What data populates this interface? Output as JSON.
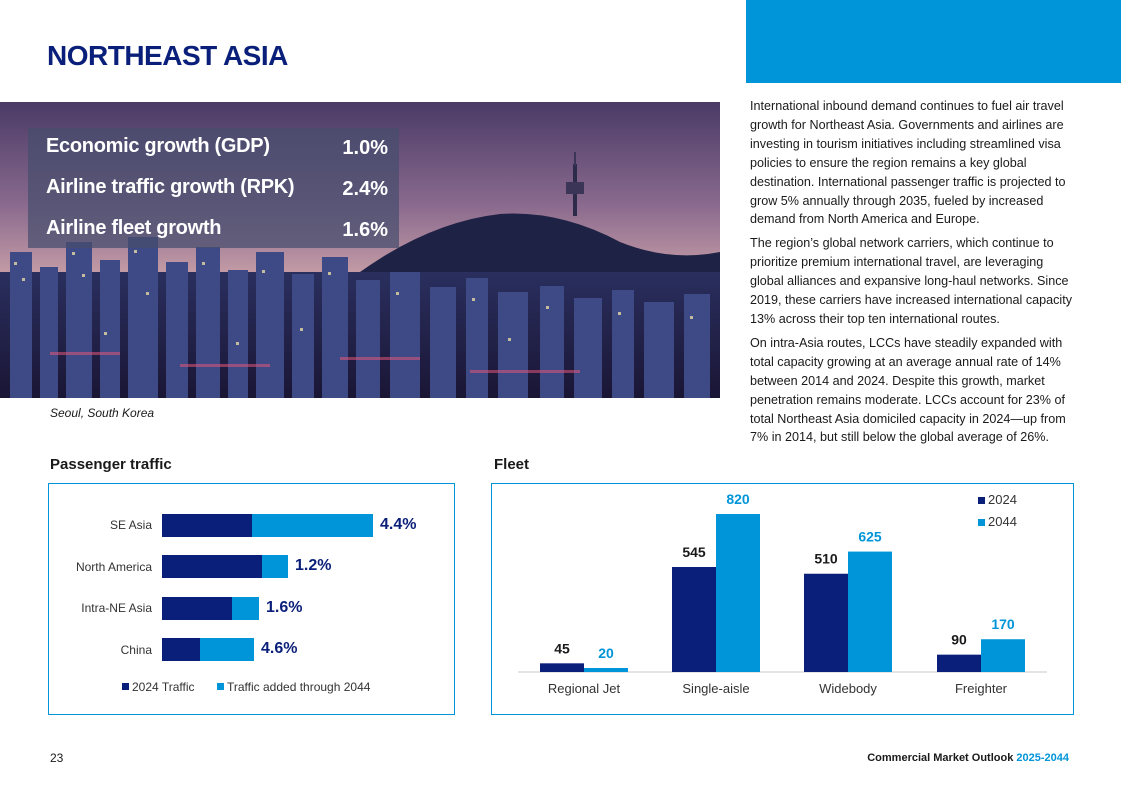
{
  "page": {
    "title": "NORTHEAST ASIA",
    "page_number": "23",
    "footer_brand": "Commercial Market Outlook",
    "footer_years": "2025-2044"
  },
  "stats": [
    {
      "label": "Economic growth (GDP)",
      "value": "1.0%"
    },
    {
      "label": "Airline traffic growth (RPK)",
      "value": "2.4%"
    },
    {
      "label": "Airline fleet growth",
      "value": "1.6%"
    }
  ],
  "photo": {
    "caption": "Seoul, South Korea"
  },
  "body": [
    "International inbound demand continues to fuel air travel growth for Northeast Asia. Governments and airlines are investing in tourism initiatives including streamlined visa policies to ensure the region remains a key global destination. International passenger traffic is projected to grow 5% annually through 2035, fueled by increased demand from North America and Europe.",
    "The region’s global network carriers, which continue to prioritize premium international travel, are leveraging global alliances and expansive long-haul networks. Since 2019, these carriers have increased international capacity 13% across their top ten international routes.",
    "On intra-Asia routes, LCCs have steadily expanded with total capacity growing at an average annual rate of 14% between 2014 and 2024. Despite this growth, market penetration remains moderate. LCCs account for 23% of total Northeast Asia domiciled capacity in 2024—up from 7% in 2014, but still below the global average of 26%."
  ],
  "colors": {
    "dark": "#0a1f7a",
    "light": "#0095d9"
  },
  "chart_data": [
    {
      "type": "bar",
      "orientation": "horizontal",
      "stacked": true,
      "title": "Passenger traffic",
      "categories": [
        "SE Asia",
        "North America",
        "Intra-NE Asia",
        "China"
      ],
      "series": [
        {
          "name": "2024 Traffic",
          "values": [
            90,
            100,
            70,
            38
          ]
        },
        {
          "name": "Traffic added through 2044",
          "values": [
            121,
            26,
            27,
            54
          ]
        }
      ],
      "labels": [
        "4.4%",
        "1.2%",
        "1.6%",
        "4.6%"
      ],
      "legend_position": "bottom"
    },
    {
      "type": "bar",
      "title": "Fleet",
      "categories": [
        "Regional Jet",
        "Single-aisle",
        "Widebody",
        "Freighter"
      ],
      "series": [
        {
          "name": "2024",
          "values": [
            45,
            545,
            510,
            90
          ]
        },
        {
          "name": "2044",
          "values": [
            20,
            820,
            625,
            170
          ]
        }
      ],
      "ylim": [
        0,
        820
      ],
      "legend_position": "top-right"
    }
  ]
}
